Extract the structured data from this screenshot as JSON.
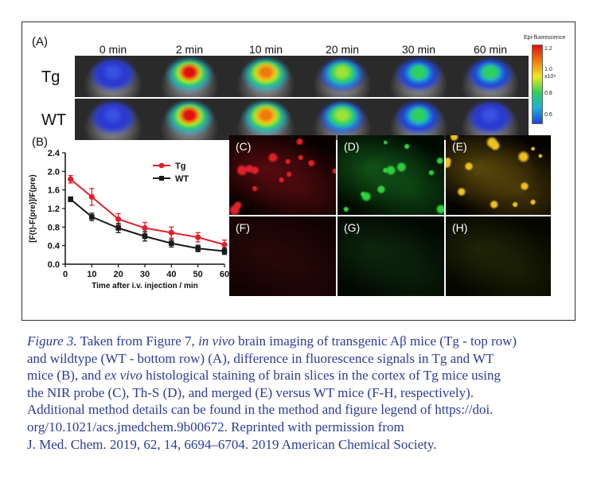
{
  "figure": {
    "panel_a_label": "(A)",
    "panel_b_label": "(B)",
    "time_labels": [
      "0 min",
      "2 min",
      "10 min",
      "20 min",
      "30 min",
      "60 min"
    ],
    "row_labels": [
      "Tg",
      "WT"
    ],
    "colorbar": {
      "title": "Epi-fluorescence",
      "ticks": [
        "1.2",
        "1.0",
        "0.8",
        "0.6"
      ],
      "exponent": "x10⁹"
    },
    "micro_labels": [
      "(C)",
      "(D)",
      "(E)",
      "(F)",
      "(G)",
      "(H)"
    ],
    "colors": {
      "tg": "#e0202a",
      "wt": "#1a1a1a",
      "caption": "#2b3b98"
    }
  },
  "chart_data": {
    "type": "line",
    "xlabel": "Time after i.v. injection / min",
    "ylabel": "[F(t)-F(pre)]/F(pre)",
    "xlim": [
      0,
      60
    ],
    "ylim": [
      0,
      2.4
    ],
    "xticks": [
      0,
      10,
      20,
      30,
      40,
      50,
      60
    ],
    "yticks": [
      0.0,
      0.4,
      0.8,
      1.2,
      1.6,
      2.0,
      2.4
    ],
    "x": [
      2,
      10,
      20,
      30,
      40,
      50,
      60
    ],
    "series": [
      {
        "name": "Tg",
        "values": [
          1.83,
          1.45,
          0.97,
          0.78,
          0.68,
          0.58,
          0.42
        ],
        "errors": [
          0.08,
          0.18,
          0.12,
          0.12,
          0.12,
          0.1,
          0.1
        ],
        "color": "#e0202a"
      },
      {
        "name": "WT",
        "values": [
          1.4,
          1.02,
          0.78,
          0.6,
          0.45,
          0.34,
          0.28
        ],
        "errors": [
          0.05,
          0.08,
          0.1,
          0.1,
          0.08,
          0.07,
          0.07
        ],
        "color": "#1a1a1a"
      }
    ],
    "legend": "top-right",
    "grid": false
  },
  "caption": {
    "fig_label": "Figure 3.",
    "l1a": " Taken from Figure 7, ",
    "l1b": "in vivo",
    "l1c": " brain imaging of transgenic Aβ mice (Tg - top row)",
    "l2": "and wildtype (WT - bottom row) (A), difference in fluorescence signals in Tg and WT",
    "l3a": "mice (B), and ",
    "l3b": "ex vivo",
    "l3c": " histological staining of brain slices in the cortex of Tg mice using",
    "l4": "the NIR probe (C), Th-S (D), and merged (E) versus WT mice (F-H, respectively).",
    "l5": "Additional method details can be found in the method and figure legend of https://doi.",
    "l6": "org/10.1021/acs.jmedchem.9b00672. Reprinted with permission from",
    "l7": "J. Med. Chem. 2019, 62, 14, 6694–6704. 2019 American Chemical Society."
  }
}
